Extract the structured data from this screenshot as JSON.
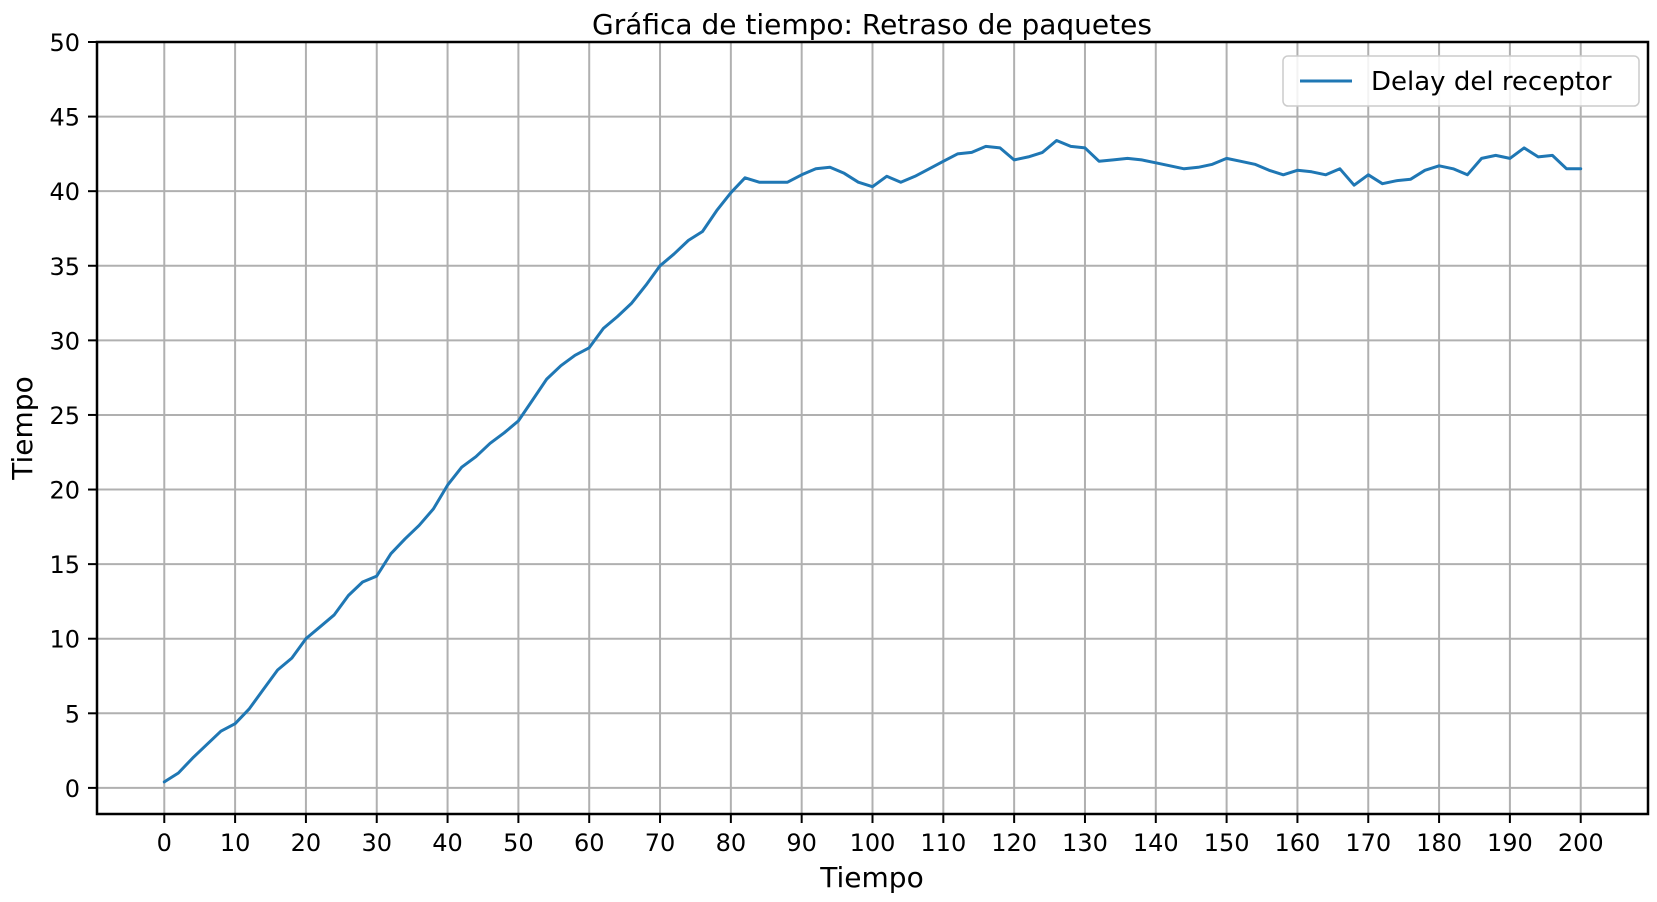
{
  "chart_data": {
    "type": "line",
    "title": "Gráfica de tiempo: Retraso de paquetes",
    "xlabel": "Tiempo",
    "ylabel": "Tiempo",
    "xlim": [
      -9.5,
      209.5
    ],
    "ylim": [
      -1.75,
      50
    ],
    "xticks": [
      0,
      10,
      20,
      30,
      40,
      50,
      60,
      70,
      80,
      90,
      100,
      110,
      120,
      130,
      140,
      150,
      160,
      170,
      180,
      190,
      200
    ],
    "yticks": [
      0,
      5,
      10,
      15,
      20,
      25,
      30,
      35,
      40,
      45,
      50
    ],
    "grid": true,
    "legend_position": "top-right",
    "series": [
      {
        "name": "Delay del receptor",
        "color": "#1f77b4",
        "x": [
          0,
          2,
          4,
          6,
          8,
          10,
          12,
          14,
          16,
          18,
          20,
          22,
          24,
          26,
          28,
          30,
          32,
          34,
          36,
          38,
          40,
          42,
          44,
          46,
          48,
          50,
          52,
          54,
          56,
          58,
          60,
          62,
          64,
          66,
          68,
          70,
          72,
          74,
          76,
          78,
          80,
          82,
          84,
          86,
          88,
          90,
          92,
          94,
          96,
          98,
          100,
          102,
          104,
          106,
          108,
          110,
          112,
          114,
          116,
          118,
          120,
          122,
          124,
          126,
          128,
          130,
          132,
          134,
          136,
          138,
          140,
          142,
          144,
          146,
          148,
          150,
          152,
          154,
          156,
          158,
          160,
          162,
          164,
          166,
          168,
          170,
          172,
          174,
          176,
          178,
          180,
          182,
          184,
          186,
          188,
          190,
          192,
          194,
          196,
          198,
          200
        ],
        "values": [
          0.4,
          1.0,
          2.0,
          2.9,
          3.8,
          4.3,
          5.3,
          6.6,
          7.9,
          8.7,
          10.0,
          10.8,
          11.6,
          12.9,
          13.8,
          14.2,
          15.7,
          16.7,
          17.6,
          18.7,
          20.3,
          21.5,
          22.2,
          23.1,
          23.8,
          24.6,
          26.0,
          27.4,
          28.3,
          29.0,
          29.5,
          30.8,
          31.6,
          32.5,
          33.7,
          35.0,
          35.8,
          36.7,
          37.3,
          38.7,
          39.9,
          40.9,
          40.6,
          40.6,
          40.6,
          41.1,
          41.5,
          41.6,
          41.2,
          40.6,
          40.3,
          41.0,
          40.6,
          41.0,
          41.5,
          42.0,
          42.5,
          42.6,
          43.0,
          42.9,
          42.1,
          42.3,
          42.6,
          43.4,
          43.0,
          42.9,
          42.0,
          42.1,
          42.2,
          42.1,
          41.9,
          41.7,
          41.5,
          41.6,
          41.8,
          42.2,
          42.0,
          41.8,
          41.4,
          41.1,
          41.4,
          41.3,
          41.1,
          41.5,
          40.4,
          41.1,
          40.5,
          40.7,
          40.8,
          41.4,
          41.7,
          41.5,
          41.1,
          42.2,
          42.4,
          42.2,
          42.9,
          42.3,
          42.4,
          41.5,
          41.5
        ]
      }
    ]
  }
}
